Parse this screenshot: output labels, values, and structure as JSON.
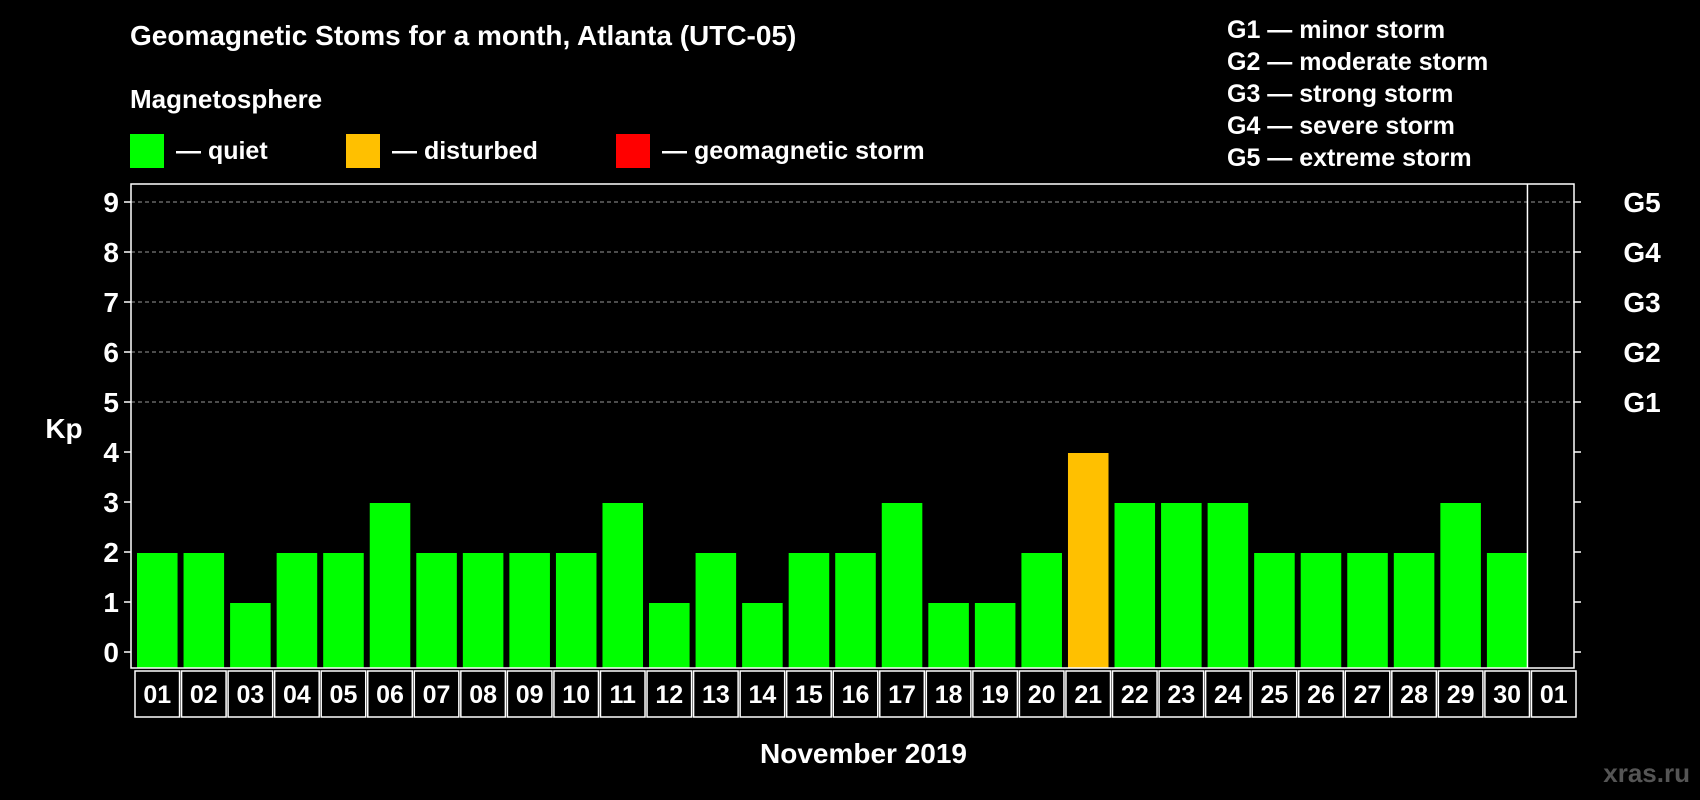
{
  "title": "Geomagnetic Stoms for a month, Atlanta (UTC-05)",
  "legend": {
    "heading": "Magnetosphere",
    "items": [
      {
        "label": "— quiet",
        "color": "#00ff00"
      },
      {
        "label": "— disturbed",
        "color": "#ffc000"
      },
      {
        "label": "— geomagnetic storm",
        "color": "#ff0000"
      }
    ]
  },
  "g_scale": [
    "G1 — minor storm",
    "G2 — moderate storm",
    "G3 — strong storm",
    "G4 — severe storm",
    "G5 — extreme storm"
  ],
  "watermark": "xras.ru",
  "chart_data": {
    "type": "bar",
    "ylabel": "Kp",
    "xlabel": "November 2019",
    "ylim": [
      0,
      9
    ],
    "yticks": [
      0,
      1,
      2,
      3,
      4,
      5,
      6,
      7,
      8,
      9
    ],
    "right_axis_labels": [
      {
        "value": 5,
        "label": "G1"
      },
      {
        "value": 6,
        "label": "G2"
      },
      {
        "value": 7,
        "label": "G3"
      },
      {
        "value": 8,
        "label": "G4"
      },
      {
        "value": 9,
        "label": "G5"
      }
    ],
    "categories": [
      "01",
      "02",
      "03",
      "04",
      "05",
      "06",
      "07",
      "08",
      "09",
      "10",
      "11",
      "12",
      "13",
      "14",
      "15",
      "16",
      "17",
      "18",
      "19",
      "20",
      "21",
      "22",
      "23",
      "24",
      "25",
      "26",
      "27",
      "28",
      "29",
      "30",
      "01"
    ],
    "values": [
      2,
      2,
      1,
      2,
      2,
      3,
      2,
      2,
      2,
      2,
      3,
      1,
      2,
      1,
      2,
      2,
      3,
      1,
      1,
      2,
      4,
      3,
      3,
      3,
      2,
      2,
      2,
      2,
      3,
      2,
      null
    ],
    "levels": [
      "quiet",
      "quiet",
      "quiet",
      "quiet",
      "quiet",
      "quiet",
      "quiet",
      "quiet",
      "quiet",
      "quiet",
      "quiet",
      "quiet",
      "quiet",
      "quiet",
      "quiet",
      "quiet",
      "quiet",
      "quiet",
      "quiet",
      "quiet",
      "disturbed",
      "quiet",
      "quiet",
      "quiet",
      "quiet",
      "quiet",
      "quiet",
      "quiet",
      "quiet",
      "quiet",
      null
    ],
    "colors": {
      "quiet": "#00ff00",
      "disturbed": "#ffc000",
      "storm": "#ff0000"
    },
    "grid": true
  }
}
